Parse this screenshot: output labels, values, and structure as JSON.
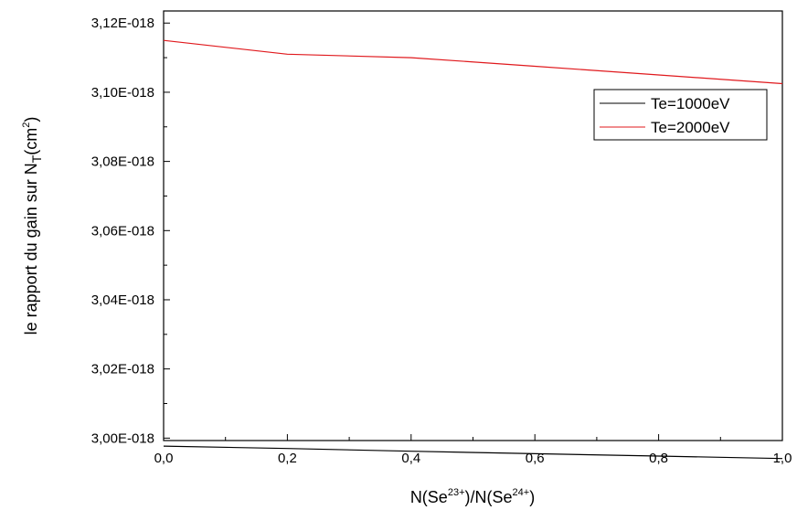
{
  "chart_data": {
    "type": "line",
    "title": "",
    "xlabel": {
      "prefix": "N(Se",
      "sup1": "23+",
      "middle": ")/N(Se",
      "sup2": "24+",
      "suffix": ")"
    },
    "ylabel": {
      "prefix": "le rapport du gain sur N",
      "sub": "T",
      "middle": "(cm",
      "sup": "2",
      "suffix": ")"
    },
    "xlim": [
      0.0,
      1.0
    ],
    "ylim": [
      2.9993e-18,
      3.1235e-18
    ],
    "x_ticks": [
      0.0,
      0.2,
      0.4,
      0.6,
      0.8,
      1.0
    ],
    "x_tick_labels": [
      "0,0",
      "0,2",
      "0,4",
      "0,6",
      "0,8",
      "1,0"
    ],
    "y_ticks": [
      3e-18,
      3.02e-18,
      3.04e-18,
      3.06e-18,
      3.08e-18,
      3.1e-18,
      3.12e-18
    ],
    "y_tick_labels": [
      "3,00E-018",
      "3,02E-018",
      "3,04E-018",
      "3,06E-018",
      "3,08E-018",
      "3,10E-018",
      "3,12E-018"
    ],
    "grid": false,
    "legend_position": "top-right",
    "x": [
      0.0,
      0.2,
      0.4,
      0.6,
      0.8,
      1.0
    ],
    "series": [
      {
        "name": "Te=1000eV",
        "color": "#000000",
        "values": [
          2.9977e-18,
          2.997e-18,
          2.9962e-18,
          2.9955e-18,
          2.9948e-18,
          2.9941e-18
        ]
      },
      {
        "name": "Te=2000eV",
        "color": "#e0191d",
        "values": [
          3.115e-18,
          3.111e-18,
          3.11e-18,
          3.1075e-18,
          3.105e-18,
          3.1025e-18
        ]
      }
    ]
  }
}
